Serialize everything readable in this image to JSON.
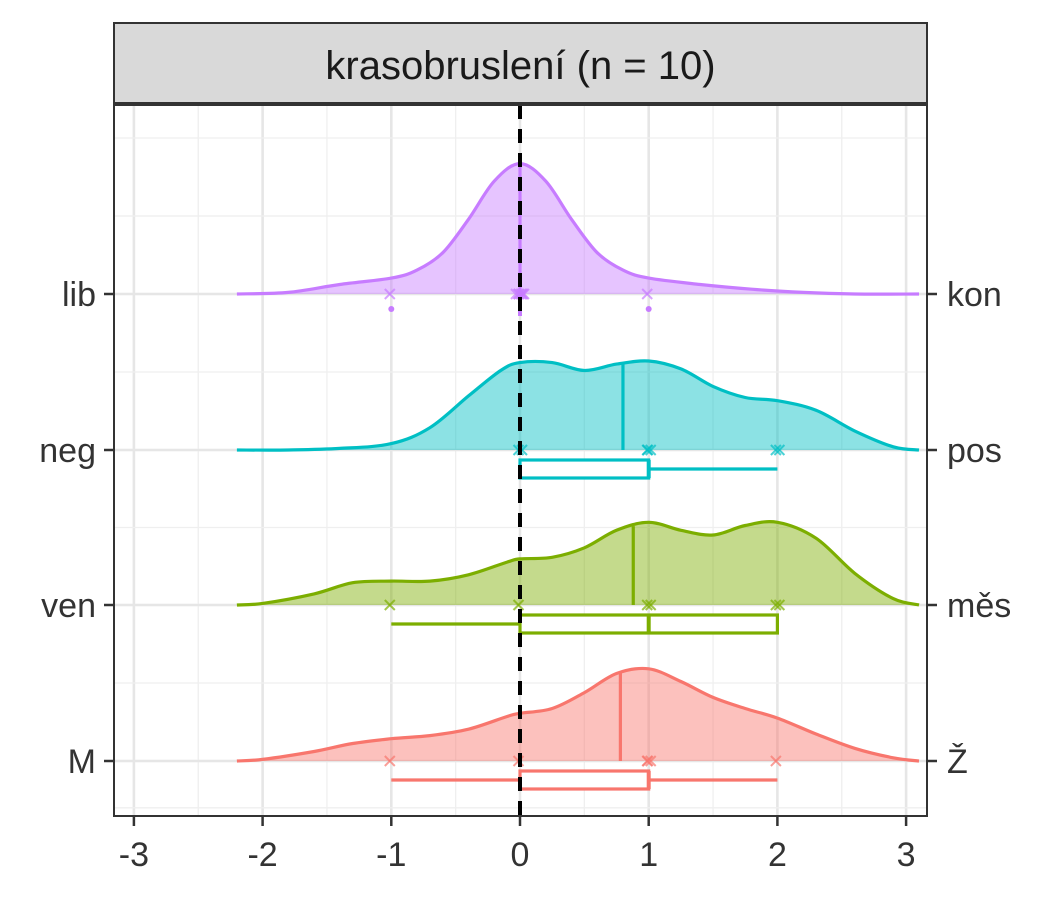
{
  "chart_data": {
    "type": "ridgeline",
    "title": "krasobruslení (n = 10)",
    "xlabel": "",
    "ylabel": "",
    "xlim": [
      -3.15,
      3.15
    ],
    "x_ticks": [
      -3,
      -2,
      -1,
      0,
      1,
      2,
      3
    ],
    "x_tick_labels": [
      "-3",
      "-2",
      "-1",
      "0",
      "1",
      "2",
      "3"
    ],
    "reference_line_x": 0,
    "grid": true,
    "legend": "none",
    "series": [
      {
        "left_label": "M",
        "right_label": "Ž",
        "color": "#F8766D",
        "points": [
          -1,
          0,
          1,
          1,
          1,
          2
        ],
        "mean": 0.78,
        "box": {
          "whisker_low": -1,
          "q1": 0,
          "median": 1,
          "q3": 1,
          "whisker_high": 2
        },
        "outliers": [],
        "density": [
          [
            -2.2,
            0.0
          ],
          [
            -2.0,
            0.01
          ],
          [
            -1.6,
            0.06
          ],
          [
            -1.3,
            0.11
          ],
          [
            -1.0,
            0.14
          ],
          [
            -0.7,
            0.16
          ],
          [
            -0.4,
            0.2
          ],
          [
            -0.1,
            0.28
          ],
          [
            0.0,
            0.3
          ],
          [
            0.25,
            0.33
          ],
          [
            0.5,
            0.43
          ],
          [
            0.75,
            0.55
          ],
          [
            1.0,
            0.58
          ],
          [
            1.25,
            0.5
          ],
          [
            1.5,
            0.4
          ],
          [
            1.75,
            0.33
          ],
          [
            2.0,
            0.27
          ],
          [
            2.3,
            0.17
          ],
          [
            2.6,
            0.08
          ],
          [
            2.9,
            0.02
          ],
          [
            3.1,
            0.0
          ]
        ]
      },
      {
        "left_label": "ven",
        "right_label": "měs",
        "color": "#7CAE00",
        "points": [
          -1,
          0,
          1,
          1,
          2,
          2
        ],
        "mean": 0.88,
        "box": {
          "whisker_low": -1,
          "q1": 0,
          "median": 1,
          "q3": 2,
          "whisker_high": 2
        },
        "outliers": [],
        "density": [
          [
            -2.2,
            0.0
          ],
          [
            -2.0,
            0.01
          ],
          [
            -1.6,
            0.07
          ],
          [
            -1.3,
            0.14
          ],
          [
            -1.0,
            0.15
          ],
          [
            -0.7,
            0.15
          ],
          [
            -0.4,
            0.19
          ],
          [
            -0.1,
            0.27
          ],
          [
            0.0,
            0.29
          ],
          [
            0.25,
            0.3
          ],
          [
            0.5,
            0.36
          ],
          [
            0.75,
            0.47
          ],
          [
            1.0,
            0.52
          ],
          [
            1.25,
            0.47
          ],
          [
            1.5,
            0.44
          ],
          [
            1.75,
            0.5
          ],
          [
            2.0,
            0.52
          ],
          [
            2.3,
            0.42
          ],
          [
            2.6,
            0.2
          ],
          [
            2.9,
            0.04
          ],
          [
            3.1,
            0.0
          ]
        ]
      },
      {
        "left_label": "neg",
        "right_label": "pos",
        "color": "#00BFC4",
        "points": [
          0,
          0,
          1,
          1,
          1,
          2,
          2
        ],
        "mean": 0.8,
        "box": {
          "whisker_low": 0,
          "q1": 0,
          "median": 1,
          "q3": 1,
          "whisker_high": 2
        },
        "outliers": [],
        "density": [
          [
            -2.2,
            0.0
          ],
          [
            -1.8,
            0.0
          ],
          [
            -1.4,
            0.01
          ],
          [
            -1.0,
            0.04
          ],
          [
            -0.7,
            0.14
          ],
          [
            -0.4,
            0.34
          ],
          [
            -0.15,
            0.5
          ],
          [
            0.0,
            0.55
          ],
          [
            0.25,
            0.55
          ],
          [
            0.5,
            0.5
          ],
          [
            0.75,
            0.54
          ],
          [
            1.0,
            0.56
          ],
          [
            1.25,
            0.51
          ],
          [
            1.5,
            0.4
          ],
          [
            1.75,
            0.33
          ],
          [
            2.0,
            0.31
          ],
          [
            2.3,
            0.25
          ],
          [
            2.6,
            0.12
          ],
          [
            2.9,
            0.02
          ],
          [
            3.1,
            0.0
          ]
        ]
      },
      {
        "left_label": "lib",
        "right_label": "kon",
        "color": "#C77CFF",
        "points": [
          -1,
          0,
          0,
          0,
          0,
          0,
          0,
          0,
          1
        ],
        "mean": 0,
        "box": {
          "whisker_low": 0,
          "q1": 0,
          "median": 0,
          "q3": 0,
          "whisker_high": 0
        },
        "outliers": [
          -1,
          1
        ],
        "density": [
          [
            -2.2,
            0.0
          ],
          [
            -1.8,
            0.01
          ],
          [
            -1.4,
            0.06
          ],
          [
            -1.0,
            0.1
          ],
          [
            -0.8,
            0.15
          ],
          [
            -0.6,
            0.26
          ],
          [
            -0.4,
            0.47
          ],
          [
            -0.2,
            0.71
          ],
          [
            0.0,
            0.82
          ],
          [
            0.2,
            0.71
          ],
          [
            0.4,
            0.47
          ],
          [
            0.6,
            0.26
          ],
          [
            0.8,
            0.15
          ],
          [
            1.0,
            0.1
          ],
          [
            1.4,
            0.06
          ],
          [
            1.8,
            0.03
          ],
          [
            2.2,
            0.01
          ],
          [
            2.6,
            0.0
          ],
          [
            3.1,
            0.0
          ]
        ]
      }
    ]
  }
}
